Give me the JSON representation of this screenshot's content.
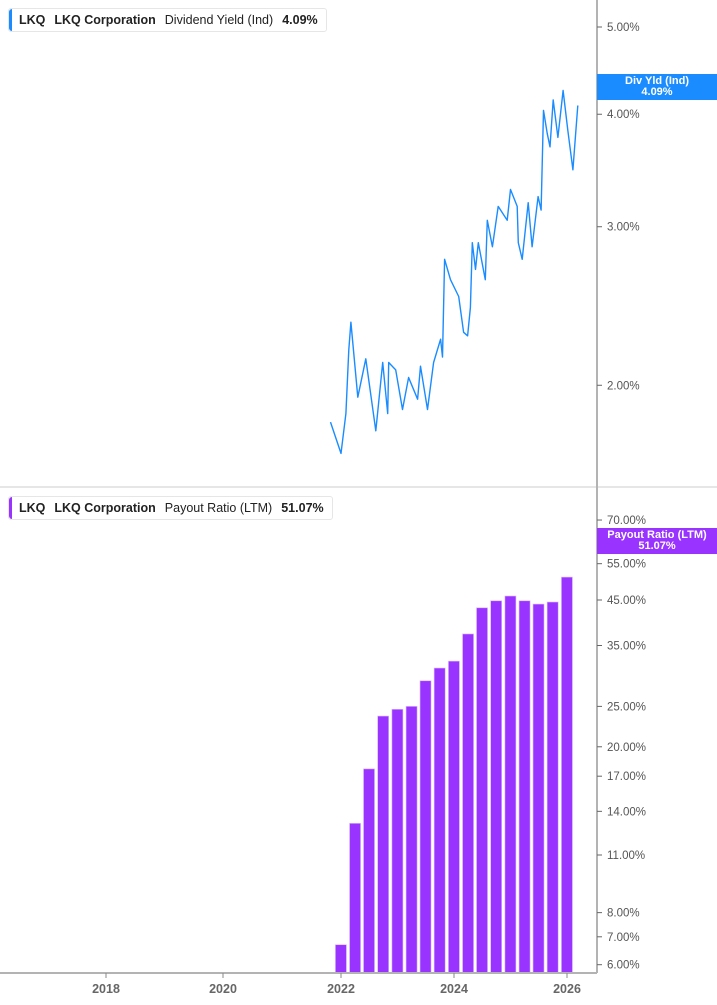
{
  "colors": {
    "yield_line": "#1a8cff",
    "payout_bars": "#9933ff",
    "axis": "#b3b3b3"
  },
  "top_legend": {
    "ticker": "LKQ",
    "company": "LKQ Corporation",
    "metric": "Dividend Yield (Ind)",
    "value": "4.09%"
  },
  "bottom_legend": {
    "ticker": "LKQ",
    "company": "LKQ Corporation",
    "metric": "Payout Ratio (LTM)",
    "value": "51.07%"
  },
  "top_tag": {
    "label": "Div Yld (Ind)",
    "value": "4.09%"
  },
  "bottom_tag": {
    "label": "Payout Ratio (LTM)",
    "value": "51.07%"
  },
  "chart_data": [
    {
      "type": "line",
      "series": [
        {
          "name": "Dividend Yield (Ind)",
          "points": [
            [
              "2021-10-27",
              1.82
            ],
            [
              "2022-01-01",
              1.68
            ],
            [
              "2022-02-02",
              1.86
            ],
            [
              "2022-02-21",
              2.19
            ],
            [
              "2022-03-04",
              2.35
            ],
            [
              "2022-04-18",
              1.94
            ],
            [
              "2022-06-09",
              2.14
            ],
            [
              "2022-08-13",
              1.78
            ],
            [
              "2022-09-27",
              2.12
            ],
            [
              "2022-10-29",
              1.86
            ],
            [
              "2022-11-05",
              2.12
            ],
            [
              "2022-12-20",
              2.08
            ],
            [
              "2023-02-03",
              1.88
            ],
            [
              "2023-03-12",
              2.04
            ],
            [
              "2023-05-09",
              1.93
            ],
            [
              "2023-05-28",
              2.1
            ],
            [
              "2023-07-12",
              1.88
            ],
            [
              "2023-08-21",
              2.12
            ],
            [
              "2023-10-06",
              2.25
            ],
            [
              "2023-10-18",
              2.15
            ],
            [
              "2023-11-01",
              2.76
            ],
            [
              "2023-12-09",
              2.62
            ],
            [
              "2024-02-01",
              2.51
            ],
            [
              "2024-03-02",
              2.29
            ],
            [
              "2024-03-28",
              2.27
            ],
            [
              "2024-04-16",
              2.44
            ],
            [
              "2024-04-28",
              2.88
            ],
            [
              "2024-05-18",
              2.69
            ],
            [
              "2024-06-06",
              2.88
            ],
            [
              "2024-07-21",
              2.62
            ],
            [
              "2024-08-03",
              3.05
            ],
            [
              "2024-09-06",
              2.85
            ],
            [
              "2024-10-13",
              3.16
            ],
            [
              "2024-12-10",
              3.05
            ],
            [
              "2025-01-01",
              3.3
            ],
            [
              "2025-02-14",
              3.16
            ],
            [
              "2025-02-21",
              2.88
            ],
            [
              "2025-03-16",
              2.76
            ],
            [
              "2025-04-24",
              3.19
            ],
            [
              "2025-05-19",
              2.85
            ],
            [
              "2025-06-27",
              3.24
            ],
            [
              "2025-07-16",
              3.13
            ],
            [
              "2025-08-01",
              4.04
            ],
            [
              "2025-08-25",
              3.81
            ],
            [
              "2025-09-13",
              3.68
            ],
            [
              "2025-10-03",
              4.15
            ],
            [
              "2025-11-03",
              3.77
            ],
            [
              "2025-12-06",
              4.25
            ],
            [
              "2026-01-06",
              3.84
            ],
            [
              "2026-02-09",
              3.47
            ],
            [
              "2026-03-10",
              4.09
            ]
          ]
        }
      ],
      "y_scale": "log",
      "y_ticks": [
        "5.00%",
        "4.00%",
        "3.00%",
        "2.00%"
      ],
      "y_tick_values": [
        5,
        4,
        3,
        2
      ],
      "ylim": [
        1.6,
        5.4
      ]
    },
    {
      "type": "bar",
      "series": [
        {
          "name": "Payout Ratio (LTM)",
          "dates": [
            "2021-12-31",
            "2022-03-31",
            "2022-06-30",
            "2022-09-30",
            "2022-12-31",
            "2023-03-31",
            "2023-06-30",
            "2023-09-30",
            "2023-12-31",
            "2024-03-31",
            "2024-06-30",
            "2024-09-30",
            "2024-12-31",
            "2025-03-31",
            "2025-06-30",
            "2025-09-30",
            "2025-12-31"
          ],
          "values": [
            6.7,
            13.1,
            17.7,
            23.7,
            24.6,
            25.0,
            28.8,
            30.9,
            32.1,
            37.3,
            43.1,
            44.8,
            46.0,
            44.8,
            44.0,
            44.5,
            51.07
          ]
        }
      ],
      "y_scale": "log",
      "y_ticks": [
        "70.00%",
        "55.00%",
        "45.00%",
        "35.00%",
        "25.00%",
        "20.00%",
        "17.00%",
        "14.00%",
        "11.00%",
        "8.00%",
        "7.00%",
        "6.00%"
      ],
      "y_tick_values": [
        70,
        55,
        45,
        35,
        25,
        20,
        17,
        14,
        11,
        8,
        7,
        6
      ],
      "ylim": [
        5.6,
        80
      ]
    }
  ],
  "x_axis": {
    "ticks": [
      "2018",
      "2020",
      "2022",
      "2024",
      "2026"
    ]
  }
}
